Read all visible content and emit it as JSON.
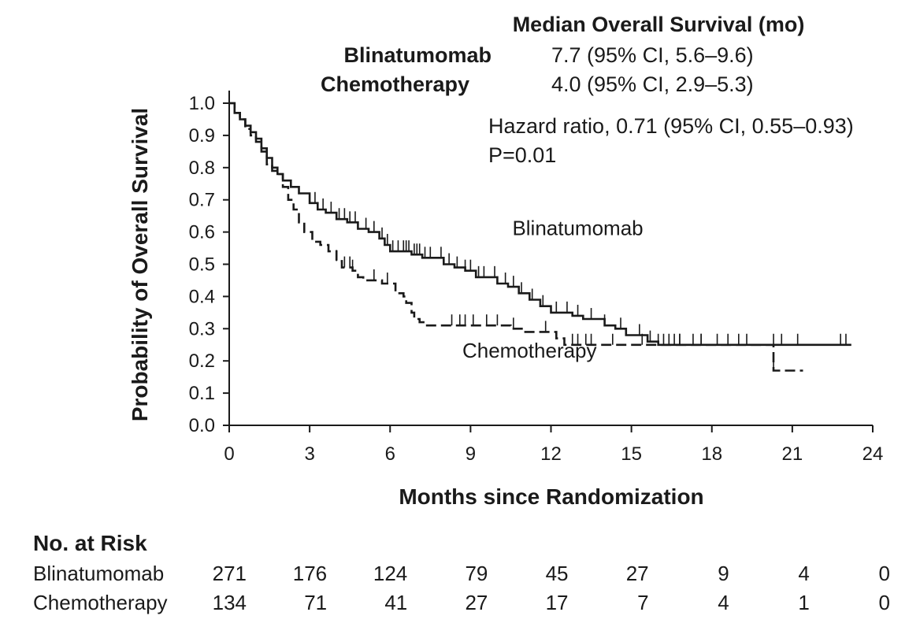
{
  "header": {
    "median_title": "Median Overall Survival (mo)",
    "rows": [
      {
        "name": "Blinatumomab",
        "value": "7.7 (95% CI, 5.6–9.6)"
      },
      {
        "name": "Chemotherapy",
        "value": "4.0 (95% CI, 2.9–5.3)"
      }
    ],
    "hazard_ratio": "Hazard ratio, 0.71 (95% CI, 0.55–0.93)",
    "p_value": "P=0.01"
  },
  "chart_data": {
    "type": "line",
    "xlabel": "Months since Randomization",
    "ylabel": "Probability of Overall Survival",
    "xlim": [
      0,
      24
    ],
    "ylim": [
      0,
      1.0
    ],
    "x_ticks": [
      0,
      3,
      6,
      9,
      12,
      15,
      18,
      21,
      24
    ],
    "y_ticks": [
      0.0,
      0.1,
      0.2,
      0.3,
      0.4,
      0.5,
      0.6,
      0.7,
      0.8,
      0.9,
      1.0
    ],
    "y_tick_labels": [
      "0.0",
      "0.1",
      "0.2",
      "0.3",
      "0.4",
      "0.5",
      "0.6",
      "0.7",
      "0.8",
      "0.9",
      "1.0"
    ],
    "grid": false,
    "series": [
      {
        "name": "Blinatumomab",
        "style": "solid",
        "color": "#1a1a1a",
        "points": [
          [
            0,
            1.0
          ],
          [
            0.2,
            0.97
          ],
          [
            0.4,
            0.95
          ],
          [
            0.6,
            0.93
          ],
          [
            0.8,
            0.91
          ],
          [
            1.0,
            0.89
          ],
          [
            1.2,
            0.86
          ],
          [
            1.4,
            0.83
          ],
          [
            1.6,
            0.8
          ],
          [
            1.8,
            0.78
          ],
          [
            2.0,
            0.76
          ],
          [
            2.3,
            0.74
          ],
          [
            2.6,
            0.72
          ],
          [
            3.0,
            0.69
          ],
          [
            3.3,
            0.67
          ],
          [
            3.6,
            0.66
          ],
          [
            4.0,
            0.64
          ],
          [
            4.4,
            0.63
          ],
          [
            4.8,
            0.61
          ],
          [
            5.2,
            0.6
          ],
          [
            5.6,
            0.58
          ],
          [
            5.8,
            0.56
          ],
          [
            6.0,
            0.54
          ],
          [
            6.4,
            0.54
          ],
          [
            6.8,
            0.53
          ],
          [
            7.2,
            0.52
          ],
          [
            7.6,
            0.52
          ],
          [
            8.0,
            0.5
          ],
          [
            8.4,
            0.49
          ],
          [
            8.8,
            0.48
          ],
          [
            9.2,
            0.46
          ],
          [
            9.6,
            0.46
          ],
          [
            10.0,
            0.44
          ],
          [
            10.4,
            0.43
          ],
          [
            10.8,
            0.41
          ],
          [
            11.2,
            0.39
          ],
          [
            11.6,
            0.37
          ],
          [
            12.0,
            0.35
          ],
          [
            12.8,
            0.34
          ],
          [
            13.2,
            0.33
          ],
          [
            14.0,
            0.31
          ],
          [
            14.4,
            0.3
          ],
          [
            14.8,
            0.28
          ],
          [
            15.2,
            0.28
          ],
          [
            15.6,
            0.26
          ],
          [
            16.0,
            0.25
          ],
          [
            23.2,
            0.25
          ]
        ],
        "censor_x": [
          3.2,
          3.5,
          3.8,
          4.1,
          4.3,
          4.5,
          4.7,
          5.1,
          5.4,
          5.7,
          5.9,
          6.1,
          6.3,
          6.5,
          6.6,
          6.7,
          6.9,
          7.0,
          7.1,
          7.3,
          7.5,
          7.9,
          8.2,
          8.5,
          8.8,
          9.0,
          9.3,
          9.5,
          9.9,
          10.3,
          10.6,
          10.9,
          11.3,
          11.7,
          12.2,
          12.6,
          13.0,
          13.5,
          14.0,
          14.6,
          15.3,
          15.7,
          16.0,
          16.2,
          16.4,
          16.6,
          16.8,
          17.3,
          17.6,
          18.2,
          18.6,
          19.0,
          19.3,
          20.3,
          20.6,
          21.2,
          22.8,
          23.0
        ]
      },
      {
        "name": "Chemotherapy",
        "style": "dashed",
        "color": "#1a1a1a",
        "points": [
          [
            0,
            1.0
          ],
          [
            0.2,
            0.97
          ],
          [
            0.4,
            0.95
          ],
          [
            0.6,
            0.92
          ],
          [
            0.8,
            0.9
          ],
          [
            1.0,
            0.88
          ],
          [
            1.2,
            0.85
          ],
          [
            1.4,
            0.81
          ],
          [
            1.6,
            0.79
          ],
          [
            1.8,
            0.78
          ],
          [
            2.0,
            0.74
          ],
          [
            2.2,
            0.7
          ],
          [
            2.4,
            0.67
          ],
          [
            2.6,
            0.63
          ],
          [
            2.8,
            0.6
          ],
          [
            3.1,
            0.57
          ],
          [
            3.4,
            0.56
          ],
          [
            3.7,
            0.54
          ],
          [
            4.0,
            0.51
          ],
          [
            4.2,
            0.49
          ],
          [
            4.6,
            0.48
          ],
          [
            4.8,
            0.46
          ],
          [
            5.0,
            0.45
          ],
          [
            5.7,
            0.44
          ],
          [
            6.2,
            0.41
          ],
          [
            6.5,
            0.4
          ],
          [
            6.6,
            0.38
          ],
          [
            6.8,
            0.35
          ],
          [
            6.9,
            0.33
          ],
          [
            7.1,
            0.32
          ],
          [
            7.3,
            0.31
          ],
          [
            10.5,
            0.3
          ],
          [
            11.0,
            0.29
          ],
          [
            12.2,
            0.27
          ],
          [
            12.5,
            0.25
          ],
          [
            20.2,
            0.25
          ],
          [
            20.3,
            0.17
          ],
          [
            21.4,
            0.17
          ]
        ],
        "censor_x": [
          4.0,
          4.3,
          4.5,
          4.6,
          5.4,
          5.9,
          8.3,
          8.6,
          8.8,
          9.1,
          9.6,
          10.0,
          10.6,
          11.8,
          12.8,
          13.0,
          13.3,
          13.5,
          14.3,
          15.4,
          16.8,
          17.6,
          20.3
        ]
      }
    ],
    "series_labels": [
      {
        "text": "Blinatumomab",
        "x": 13.0,
        "y": 0.59
      },
      {
        "text": "Chemotherapy",
        "x": 11.2,
        "y": 0.21
      }
    ],
    "risk_table": {
      "title": "No. at Risk",
      "rows": [
        {
          "name": "Blinatumomab",
          "values": [
            "271",
            "176",
            "124",
            "79",
            "45",
            "27",
            "9",
            "4",
            "0"
          ]
        },
        {
          "name": "Chemotherapy",
          "values": [
            "134",
            "71",
            "41",
            "27",
            "17",
            "7",
            "4",
            "1",
            "0"
          ]
        }
      ]
    }
  }
}
